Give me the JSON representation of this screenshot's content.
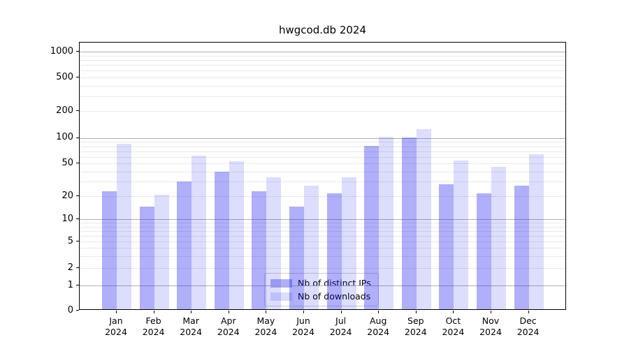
{
  "title": "hwgcod.db 2024",
  "chart_data": {
    "type": "bar",
    "title": "hwgcod.db 2024",
    "categories": [
      "Jan 2024",
      "Feb 2024",
      "Mar 2024",
      "Apr 2024",
      "May 2024",
      "Jun 2024",
      "Jul 2024",
      "Aug 2024",
      "Sep 2024",
      "Oct 2024",
      "Nov 2024",
      "Dec 2024"
    ],
    "series": [
      {
        "name": "Nb of distinct IPs",
        "color_hex": "#aaaaf7",
        "fill": "rgba(25,25,240,0.35)",
        "values": [
          22,
          14,
          29,
          38,
          22,
          14,
          21,
          78,
          98,
          27,
          21,
          26
        ]
      },
      {
        "name": "Nb of downloads",
        "color_hex": "#dcdcf9",
        "fill": "rgba(25,25,240,0.15)",
        "values": [
          83,
          20,
          60,
          51,
          33,
          26,
          33,
          100,
          122,
          52,
          44,
          62
        ]
      }
    ],
    "yticks": [
      0,
      1,
      2,
      5,
      10,
      20,
      50,
      100,
      200,
      500,
      1000
    ],
    "yscale": "symlog",
    "ylim": [
      0,
      1300
    ],
    "xlabel": "",
    "ylabel": "",
    "grid": true,
    "legend_position": "lower center"
  }
}
